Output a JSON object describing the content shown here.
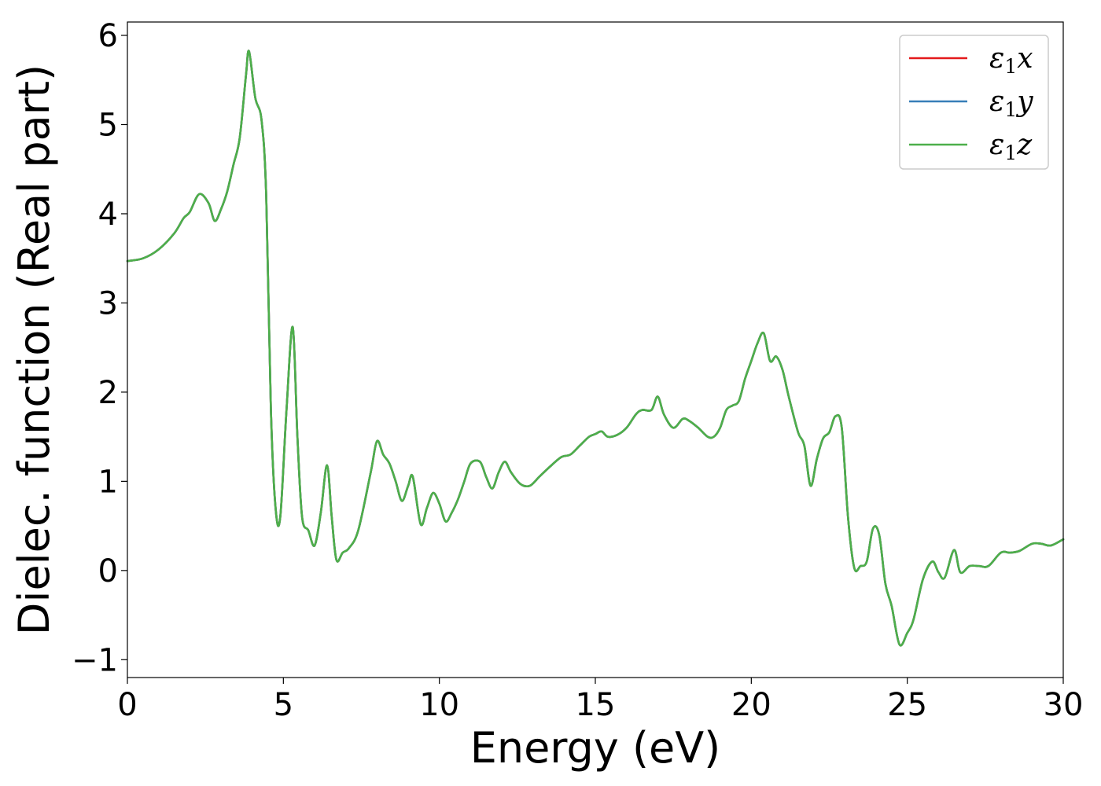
{
  "chart_data": {
    "type": "line",
    "xlabel": "Energy (eV)",
    "ylabel": "Dielec. function (Real part)",
    "xlim": [
      0,
      30
    ],
    "ylim": [
      -1.2,
      6.15
    ],
    "xticks": [
      0,
      5,
      10,
      15,
      20,
      25,
      30
    ],
    "xtick_labels": [
      "0",
      "5",
      "10",
      "15",
      "20",
      "25",
      "30"
    ],
    "yticks": [
      -1,
      0,
      1,
      2,
      3,
      4,
      5,
      6
    ],
    "ytick_labels": [
      "−1",
      "0",
      "1",
      "2",
      "3",
      "4",
      "5",
      "6"
    ],
    "grid": false,
    "legend_position": "top-right",
    "x": [
      0,
      0.5,
      1.0,
      1.5,
      1.8,
      2.0,
      2.3,
      2.6,
      2.8,
      3.0,
      3.2,
      3.4,
      3.6,
      3.8,
      3.9,
      4.1,
      4.3,
      4.45,
      4.6,
      4.75,
      4.9,
      5.1,
      5.3,
      5.45,
      5.6,
      5.8,
      6.0,
      6.2,
      6.4,
      6.55,
      6.7,
      6.9,
      7.1,
      7.4,
      7.8,
      8.0,
      8.2,
      8.4,
      8.6,
      8.8,
      9.0,
      9.15,
      9.4,
      9.6,
      9.8,
      10.0,
      10.2,
      10.4,
      10.6,
      10.8,
      11.0,
      11.3,
      11.5,
      11.7,
      11.9,
      12.1,
      12.3,
      12.6,
      12.9,
      13.2,
      13.5,
      13.9,
      14.2,
      14.5,
      14.8,
      15.0,
      15.2,
      15.4,
      15.7,
      16.0,
      16.3,
      16.5,
      16.8,
      17.0,
      17.2,
      17.5,
      17.8,
      18.0,
      18.3,
      18.6,
      18.8,
      19.0,
      19.2,
      19.4,
      19.6,
      19.8,
      20.0,
      20.2,
      20.4,
      20.6,
      20.8,
      21.0,
      21.2,
      21.5,
      21.7,
      21.9,
      22.1,
      22.3,
      22.5,
      22.7,
      22.9,
      23.1,
      23.3,
      23.5,
      23.7,
      23.9,
      24.1,
      24.3,
      24.5,
      24.75,
      25.0,
      25.2,
      25.5,
      25.8,
      26.0,
      26.2,
      26.5,
      26.7,
      27.0,
      27.3,
      27.6,
      28.0,
      28.3,
      28.6,
      29.0,
      29.3,
      29.6,
      30.0
    ],
    "series": [
      {
        "name": "ε₁x",
        "name_base": "ε",
        "name_sub": "1",
        "name_var": "x",
        "color": "#e41a1c",
        "values": [
          3.47,
          3.5,
          3.6,
          3.78,
          3.95,
          4.02,
          4.22,
          4.12,
          3.92,
          4.05,
          4.25,
          4.55,
          4.85,
          5.55,
          5.82,
          5.3,
          5.05,
          4.2,
          1.8,
          0.7,
          0.6,
          1.8,
          2.73,
          1.5,
          0.6,
          0.45,
          0.28,
          0.65,
          1.18,
          0.6,
          0.12,
          0.2,
          0.25,
          0.45,
          1.1,
          1.45,
          1.3,
          1.2,
          1.0,
          0.78,
          0.95,
          1.05,
          0.52,
          0.7,
          0.87,
          0.75,
          0.55,
          0.65,
          0.8,
          1.0,
          1.2,
          1.22,
          1.05,
          0.92,
          1.1,
          1.22,
          1.1,
          0.97,
          0.95,
          1.05,
          1.15,
          1.27,
          1.3,
          1.4,
          1.5,
          1.53,
          1.56,
          1.5,
          1.52,
          1.6,
          1.75,
          1.8,
          1.8,
          1.95,
          1.75,
          1.6,
          1.7,
          1.68,
          1.6,
          1.5,
          1.5,
          1.6,
          1.8,
          1.85,
          1.9,
          2.15,
          2.35,
          2.55,
          2.66,
          2.35,
          2.4,
          2.25,
          1.95,
          1.55,
          1.4,
          0.95,
          1.25,
          1.48,
          1.55,
          1.73,
          1.6,
          0.6,
          0.03,
          0.05,
          0.1,
          0.47,
          0.4,
          -0.15,
          -0.4,
          -0.83,
          -0.7,
          -0.55,
          -0.1,
          0.1,
          -0.02,
          -0.08,
          0.23,
          -0.02,
          0.05,
          0.05,
          0.05,
          0.2,
          0.2,
          0.22,
          0.3,
          0.3,
          0.28,
          0.35
        ]
      },
      {
        "name": "ε₁y",
        "name_base": "ε",
        "name_sub": "1",
        "name_var": "y",
        "color": "#377eb8",
        "values": [
          3.47,
          3.5,
          3.6,
          3.78,
          3.95,
          4.02,
          4.22,
          4.12,
          3.92,
          4.05,
          4.25,
          4.55,
          4.85,
          5.55,
          5.82,
          5.3,
          5.05,
          4.2,
          1.8,
          0.7,
          0.6,
          1.8,
          2.73,
          1.5,
          0.6,
          0.45,
          0.28,
          0.65,
          1.18,
          0.6,
          0.12,
          0.2,
          0.25,
          0.45,
          1.1,
          1.45,
          1.3,
          1.2,
          1.0,
          0.78,
          0.95,
          1.05,
          0.52,
          0.7,
          0.87,
          0.75,
          0.55,
          0.65,
          0.8,
          1.0,
          1.2,
          1.22,
          1.05,
          0.92,
          1.1,
          1.22,
          1.1,
          0.97,
          0.95,
          1.05,
          1.15,
          1.27,
          1.3,
          1.4,
          1.5,
          1.53,
          1.56,
          1.5,
          1.52,
          1.6,
          1.75,
          1.8,
          1.8,
          1.95,
          1.75,
          1.6,
          1.7,
          1.68,
          1.6,
          1.5,
          1.5,
          1.6,
          1.8,
          1.85,
          1.9,
          2.15,
          2.35,
          2.55,
          2.66,
          2.35,
          2.4,
          2.25,
          1.95,
          1.55,
          1.4,
          0.95,
          1.25,
          1.48,
          1.55,
          1.73,
          1.6,
          0.6,
          0.03,
          0.05,
          0.1,
          0.47,
          0.4,
          -0.15,
          -0.4,
          -0.83,
          -0.7,
          -0.55,
          -0.1,
          0.1,
          -0.02,
          -0.08,
          0.23,
          -0.02,
          0.05,
          0.05,
          0.05,
          0.2,
          0.2,
          0.22,
          0.3,
          0.3,
          0.28,
          0.35
        ]
      },
      {
        "name": "ε₁z",
        "name_base": "ε",
        "name_sub": "1",
        "name_var": "z",
        "color": "#4daf4a",
        "values": [
          3.47,
          3.5,
          3.6,
          3.78,
          3.95,
          4.02,
          4.22,
          4.12,
          3.92,
          4.05,
          4.25,
          4.55,
          4.85,
          5.55,
          5.82,
          5.3,
          5.05,
          4.2,
          1.8,
          0.7,
          0.6,
          1.8,
          2.73,
          1.5,
          0.6,
          0.45,
          0.28,
          0.65,
          1.18,
          0.6,
          0.12,
          0.2,
          0.25,
          0.45,
          1.1,
          1.45,
          1.3,
          1.2,
          1.0,
          0.78,
          0.95,
          1.05,
          0.52,
          0.7,
          0.87,
          0.75,
          0.55,
          0.65,
          0.8,
          1.0,
          1.2,
          1.22,
          1.05,
          0.92,
          1.1,
          1.22,
          1.1,
          0.97,
          0.95,
          1.05,
          1.15,
          1.27,
          1.3,
          1.4,
          1.5,
          1.53,
          1.56,
          1.5,
          1.52,
          1.6,
          1.75,
          1.8,
          1.8,
          1.95,
          1.75,
          1.6,
          1.7,
          1.68,
          1.6,
          1.5,
          1.5,
          1.6,
          1.8,
          1.85,
          1.9,
          2.15,
          2.35,
          2.55,
          2.66,
          2.35,
          2.4,
          2.25,
          1.95,
          1.55,
          1.4,
          0.95,
          1.25,
          1.48,
          1.55,
          1.73,
          1.6,
          0.6,
          0.03,
          0.05,
          0.1,
          0.47,
          0.4,
          -0.15,
          -0.4,
          -0.83,
          -0.7,
          -0.55,
          -0.1,
          0.1,
          -0.02,
          -0.08,
          0.23,
          -0.02,
          0.05,
          0.05,
          0.05,
          0.2,
          0.2,
          0.22,
          0.3,
          0.3,
          0.28,
          0.35
        ]
      }
    ]
  }
}
